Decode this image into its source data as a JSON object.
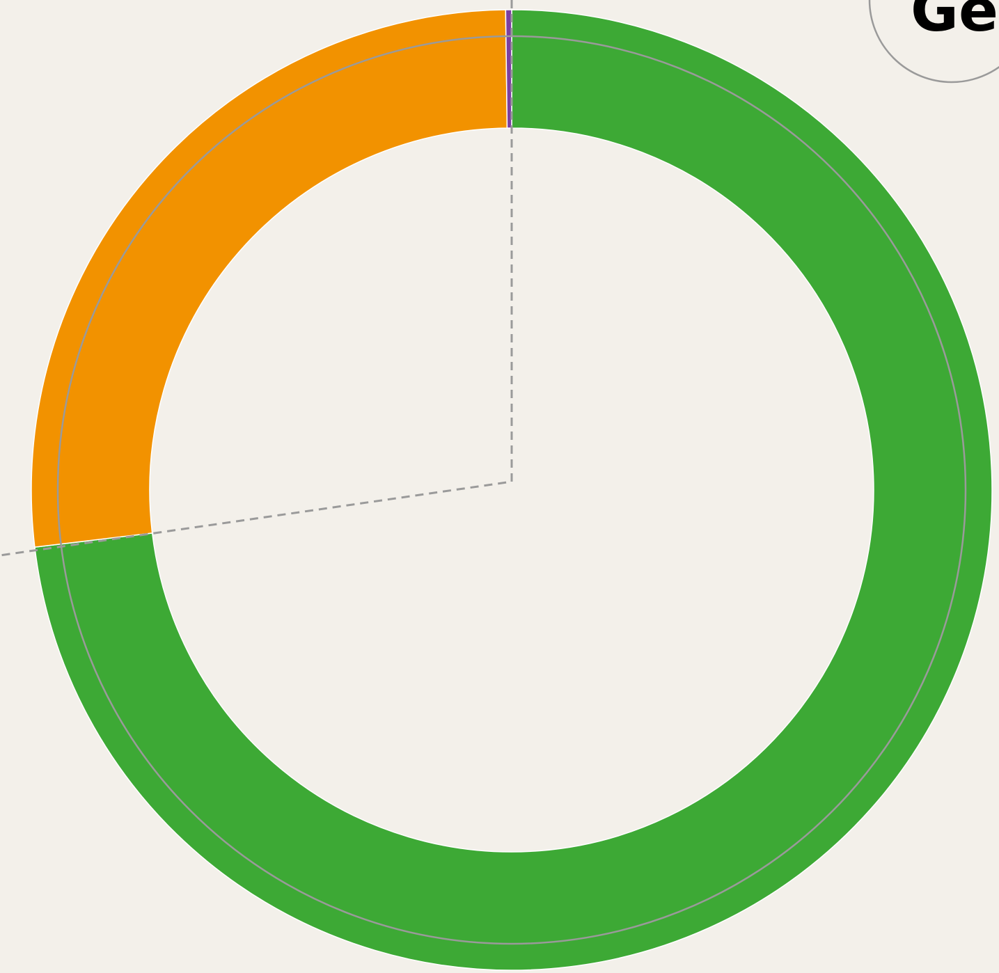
{
  "chart_data": {
    "type": "donut",
    "values": [
      73.1,
      26.7,
      0.2
    ],
    "colors": [
      "#3da935",
      "#f29200",
      "#7b3fa0"
    ],
    "badge": "Ge"
  }
}
